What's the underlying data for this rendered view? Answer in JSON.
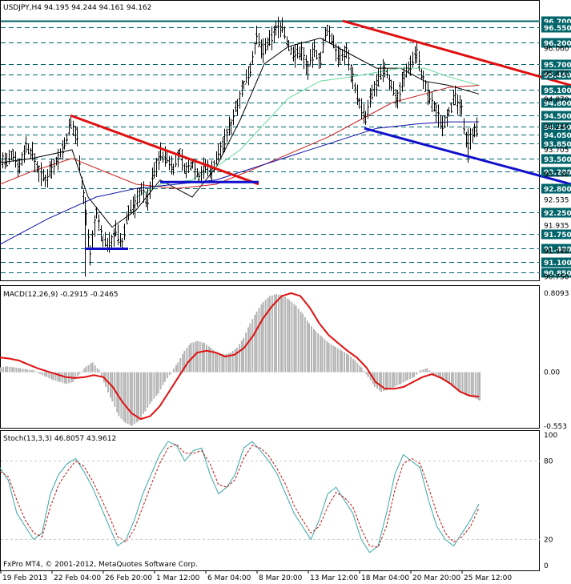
{
  "title": "USDJPY,H4  94.195 94.244 94.161 94.162",
  "footer": "FxPro MT4, © 2001-2012, MetaQuotes Software Corp.",
  "colors": {
    "grid": "#00646a",
    "price_label_bg": "#00646a",
    "bar": "#000000",
    "ma_fast": "#000000",
    "ma_green": "#66d9a0",
    "ma_red": "#cc2020",
    "ma_blue": "#1010aa",
    "trend_red": "#e01010",
    "trend_blue": "#1010cc",
    "macd_hist": "#b4b4b4",
    "macd_signal": "#e01010",
    "stoch_main": "#3aa6a6",
    "stoch_signal": "#c01010"
  },
  "chart_data": [
    {
      "type": "line",
      "panel": "price",
      "symbol": "USDJPY,H4",
      "ohlc_header": {
        "open": 94.195,
        "high": 94.244,
        "low": 94.161,
        "close": 94.162
      },
      "ylim": [
        90.7,
        96.85
      ],
      "y_labels_boxed": [
        "96.700",
        "96.550",
        "96.200",
        "95.700",
        "95.450",
        "95.100",
        "94.800",
        "94.500",
        "94.250",
        "94.050",
        "93.850",
        "93.500",
        "93.200",
        "92.800",
        "92.250",
        "91.750",
        "91.400",
        "91.100",
        "90.850"
      ],
      "y_labels_plain": [
        "96.060",
        "95.470",
        "94.870",
        "94.240",
        "93.705",
        "93.130",
        "92.535",
        "91.935",
        "91.340",
        "90.750"
      ],
      "x_labels": [
        "19 Feb 2013",
        "22 Feb 04:00",
        "26 Feb 20:00",
        "1 Mar 12:00",
        "6 Mar 04:00",
        "8 Mar 20:00",
        "13 Mar 12:00",
        "18 Mar 04:00",
        "20 Mar 20:00",
        "25 Mar 12:00"
      ],
      "grid": true,
      "approx_close_path": [
        [
          0,
          93.5
        ],
        [
          8,
          93.4
        ],
        [
          16,
          93.6
        ],
        [
          24,
          93.3
        ],
        [
          32,
          93.8
        ],
        [
          40,
          93.6
        ],
        [
          48,
          93.2
        ],
        [
          56,
          93.0
        ],
        [
          64,
          93.3
        ],
        [
          72,
          93.5
        ],
        [
          80,
          93.8
        ],
        [
          88,
          94.3
        ],
        [
          96,
          94.0
        ],
        [
          104,
          92.6
        ],
        [
          112,
          91.3
        ],
        [
          120,
          92.2
        ],
        [
          128,
          91.6
        ],
        [
          136,
          91.5
        ],
        [
          144,
          91.8
        ],
        [
          152,
          91.5
        ],
        [
          160,
          92.3
        ],
        [
          168,
          92.4
        ],
        [
          176,
          92.8
        ],
        [
          184,
          92.5
        ],
        [
          192,
          93.2
        ],
        [
          200,
          93.6
        ],
        [
          208,
          93.5
        ],
        [
          216,
          93.3
        ],
        [
          224,
          93.6
        ],
        [
          232,
          93.2
        ],
        [
          240,
          93.4
        ],
        [
          248,
          93.1
        ],
        [
          256,
          93.3
        ],
        [
          264,
          93.2
        ],
        [
          272,
          93.6
        ],
        [
          280,
          93.9
        ],
        [
          288,
          94.3
        ],
        [
          296,
          94.8
        ],
        [
          304,
          95.2
        ],
        [
          312,
          95.6
        ],
        [
          320,
          96.3
        ],
        [
          328,
          96.0
        ],
        [
          336,
          96.2
        ],
        [
          344,
          96.5
        ],
        [
          352,
          96.6
        ],
        [
          360,
          96.1
        ],
        [
          368,
          95.9
        ],
        [
          376,
          96.0
        ],
        [
          384,
          95.6
        ],
        [
          392,
          96.0
        ],
        [
          400,
          95.8
        ],
        [
          408,
          96.5
        ],
        [
          416,
          96.2
        ],
        [
          424,
          95.8
        ],
        [
          432,
          96.0
        ],
        [
          440,
          95.4
        ],
        [
          448,
          94.8
        ],
        [
          456,
          94.4
        ],
        [
          464,
          95.0
        ],
        [
          472,
          95.3
        ],
        [
          480,
          95.6
        ],
        [
          488,
          95.2
        ],
        [
          496,
          94.9
        ],
        [
          504,
          95.4
        ],
        [
          512,
          95.7
        ],
        [
          520,
          96.0
        ],
        [
          528,
          95.3
        ],
        [
          536,
          94.9
        ],
        [
          544,
          94.6
        ],
        [
          552,
          94.3
        ],
        [
          560,
          94.6
        ],
        [
          568,
          94.9
        ],
        [
          576,
          94.6
        ],
        [
          584,
          93.8
        ],
        [
          592,
          94.2
        ],
        [
          598,
          94.16
        ]
      ],
      "moving_averages": [
        {
          "name": "MA fast",
          "color": "#000000",
          "points": [
            [
              0,
              93.4
            ],
            [
              40,
              93.5
            ],
            [
              90,
              93.7
            ],
            [
              110,
              92.6
            ],
            [
              140,
              91.9
            ],
            [
              170,
              92.3
            ],
            [
              200,
              93.0
            ],
            [
              240,
              92.6
            ],
            [
              270,
              93.3
            ],
            [
              300,
              94.4
            ],
            [
              330,
              95.7
            ],
            [
              360,
              96.1
            ],
            [
              400,
              96.3
            ],
            [
              440,
              95.9
            ],
            [
              470,
              95.6
            ],
            [
              500,
              95.6
            ],
            [
              530,
              95.3
            ],
            [
              560,
              95.2
            ],
            [
              598,
              95.0
            ]
          ]
        },
        {
          "name": "MA green",
          "color": "#66d9a0",
          "points": [
            [
              170,
              92.6
            ],
            [
              200,
              92.9
            ],
            [
              240,
              93.0
            ],
            [
              270,
              93.3
            ],
            [
              300,
              93.7
            ],
            [
              330,
              94.3
            ],
            [
              360,
              94.9
            ],
            [
              400,
              95.3
            ],
            [
              440,
              95.4
            ],
            [
              470,
              95.5
            ],
            [
              500,
              95.6
            ],
            [
              530,
              95.6
            ],
            [
              560,
              95.4
            ],
            [
              598,
              95.2
            ]
          ]
        },
        {
          "name": "MA red",
          "color": "#cc2020",
          "points": [
            [
              0,
              92.9
            ],
            [
              40,
              93.2
            ],
            [
              90,
              93.5
            ],
            [
              130,
              93.2
            ],
            [
              170,
              92.9
            ],
            [
              220,
              92.8
            ],
            [
              270,
              92.9
            ],
            [
              310,
              93.2
            ],
            [
              360,
              93.6
            ],
            [
              410,
              94.0
            ],
            [
              450,
              94.4
            ],
            [
              490,
              94.8
            ],
            [
              530,
              95.0
            ],
            [
              560,
              95.15
            ],
            [
              598,
              95.2
            ]
          ]
        },
        {
          "name": "MA blue",
          "color": "#1010aa",
          "points": [
            [
              0,
              91.5
            ],
            [
              60,
              92.1
            ],
            [
              120,
              92.6
            ],
            [
              170,
              92.8
            ],
            [
              220,
              92.9
            ],
            [
              270,
              93.0
            ],
            [
              320,
              93.3
            ],
            [
              370,
              93.6
            ],
            [
              420,
              93.9
            ],
            [
              470,
              94.2
            ],
            [
              520,
              94.3
            ],
            [
              560,
              94.35
            ],
            [
              598,
              94.35
            ]
          ]
        }
      ],
      "trendlines": [
        {
          "name": "red down 1",
          "color": "#e01010",
          "points": [
            [
              88,
              94.5
            ],
            [
              323,
              92.9
            ]
          ]
        },
        {
          "name": "red down 2",
          "color": "#e01010",
          "points": [
            [
              428,
              96.7
            ],
            [
              713,
              95.2
            ]
          ]
        },
        {
          "name": "blue support 1",
          "color": "#1010cc",
          "points": [
            [
              200,
              92.95
            ],
            [
              323,
              92.95
            ]
          ]
        },
        {
          "name": "blue support 2",
          "color": "#1010cc",
          "points": [
            [
              106,
              91.4
            ],
            [
              160,
              91.4
            ]
          ]
        },
        {
          "name": "blue down",
          "color": "#1010cc",
          "points": [
            [
              455,
              94.2
            ],
            [
              713,
              92.9
            ]
          ]
        }
      ]
    },
    {
      "type": "bar",
      "panel": "macd",
      "title": "MACD(12,26,9) -0.2915 -0.2465",
      "ylim": [
        -0.553,
        0.8093
      ],
      "y_labels": [
        "0.8093",
        "0.00",
        "-0.553"
      ],
      "histogram": [
        0.05,
        0.06,
        0.05,
        0.04,
        0.03,
        0.02,
        -0.02,
        -0.05,
        -0.08,
        -0.1,
        -0.12,
        -0.1,
        -0.02,
        0.06,
        0.1,
        0.02,
        -0.15,
        -0.3,
        -0.45,
        -0.52,
        -0.55,
        -0.5,
        -0.4,
        -0.3,
        -0.22,
        -0.1,
        0.0,
        0.1,
        0.22,
        0.3,
        0.32,
        0.3,
        0.25,
        0.2,
        0.18,
        0.2,
        0.25,
        0.35,
        0.5,
        0.62,
        0.72,
        0.78,
        0.8,
        0.79,
        0.74,
        0.68,
        0.6,
        0.5,
        0.42,
        0.36,
        0.3,
        0.26,
        0.22,
        0.18,
        0.12,
        0.05,
        -0.05,
        -0.15,
        -0.2,
        -0.18,
        -0.15,
        -0.12,
        -0.08,
        -0.05,
        0.02,
        0.04,
        -0.02,
        -0.06,
        -0.1,
        -0.15,
        -0.2,
        -0.24,
        -0.26,
        -0.29
      ],
      "signal": [
        0.15,
        0.14,
        0.12,
        0.08,
        0.04,
        0.01,
        -0.02,
        -0.05,
        -0.06,
        -0.05,
        -0.03,
        -0.05,
        -0.15,
        -0.3,
        -0.42,
        -0.48,
        -0.45,
        -0.35,
        -0.2,
        -0.05,
        0.1,
        0.2,
        0.22,
        0.2,
        0.16,
        0.18,
        0.25,
        0.38,
        0.55,
        0.68,
        0.78,
        0.81,
        0.78,
        0.66,
        0.5,
        0.38,
        0.3,
        0.22,
        0.15,
        0.05,
        -0.1,
        -0.17,
        -0.17,
        -0.15,
        -0.1,
        -0.05,
        -0.02,
        -0.06,
        -0.12,
        -0.2,
        -0.24,
        -0.25
      ]
    },
    {
      "type": "line",
      "panel": "stochastic",
      "title": "Stoch(13,3,3) 46.8057 43.9612",
      "ylim": [
        0,
        100
      ],
      "y_labels": [
        "100",
        "80",
        "20",
        "0"
      ],
      "main": [
        75,
        65,
        40,
        30,
        20,
        25,
        55,
        70,
        78,
        82,
        72,
        60,
        45,
        30,
        15,
        20,
        35,
        55,
        70,
        85,
        95,
        92,
        80,
        88,
        90,
        70,
        55,
        60,
        70,
        90,
        95,
        88,
        80,
        70,
        55,
        40,
        30,
        20,
        35,
        55,
        60,
        50,
        40,
        20,
        10,
        15,
        40,
        70,
        85,
        80,
        75,
        50,
        30,
        20,
        15,
        25,
        35,
        47
      ],
      "signal": [
        72,
        68,
        50,
        35,
        25,
        22,
        45,
        62,
        72,
        80,
        76,
        65,
        52,
        38,
        22,
        18,
        28,
        45,
        62,
        78,
        90,
        93,
        86,
        86,
        88,
        78,
        62,
        60,
        66,
        82,
        92,
        90,
        84,
        74,
        62,
        46,
        35,
        25,
        30,
        45,
        56,
        52,
        45,
        28,
        15,
        14,
        30,
        58,
        78,
        82,
        78,
        60,
        40,
        25,
        18,
        22,
        30,
        44
      ]
    }
  ]
}
